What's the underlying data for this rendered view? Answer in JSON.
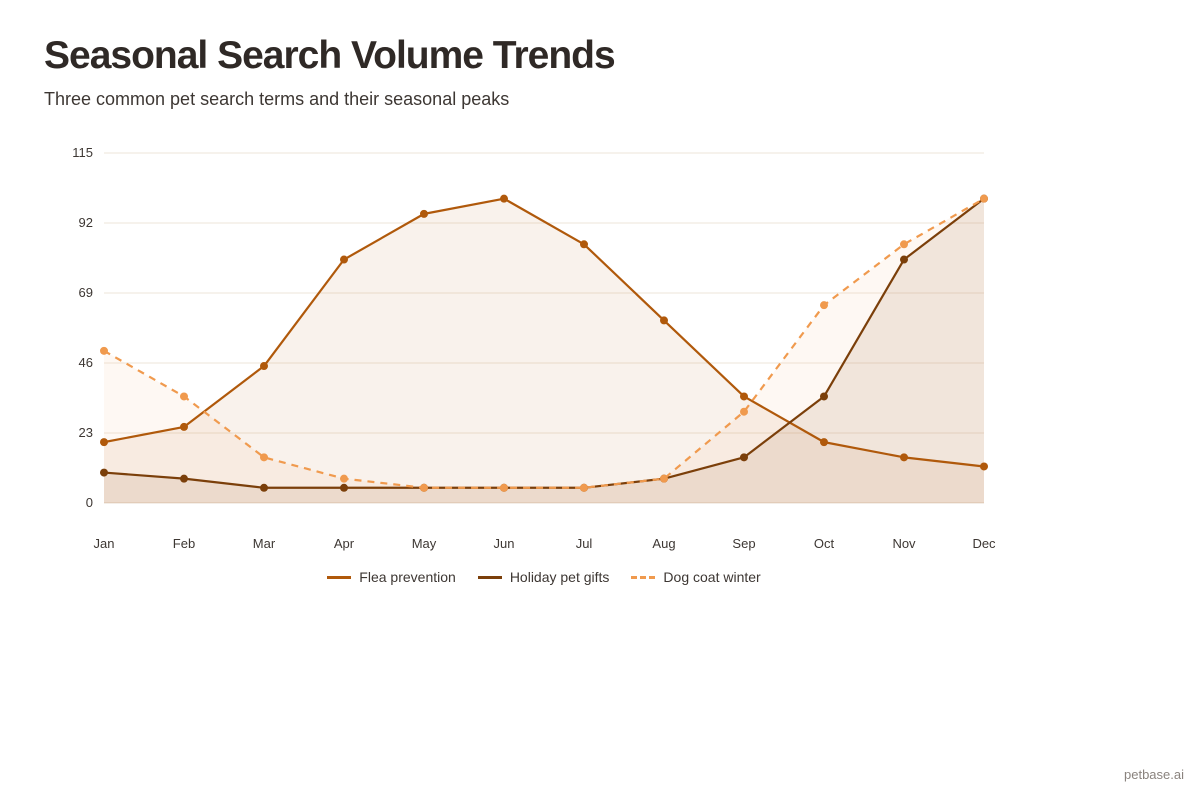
{
  "title": "Seasonal Search Volume Trends",
  "subtitle": "Three common pet search terms and their seasonal peaks",
  "footer": "petbase.ai",
  "chart_data": {
    "type": "line",
    "x": [
      "Jan",
      "Feb",
      "Mar",
      "Apr",
      "May",
      "Jun",
      "Jul",
      "Aug",
      "Sep",
      "Oct",
      "Nov",
      "Dec"
    ],
    "ylim": [
      0,
      115
    ],
    "yticks": [
      0,
      23,
      46,
      69,
      92,
      115
    ],
    "grid": true,
    "area_fill": true,
    "legend_position": "bottom",
    "series": [
      {
        "name": "Flea prevention",
        "color": "#b0590b",
        "dashed": false,
        "values": [
          20,
          25,
          45,
          80,
          95,
          100,
          85,
          60,
          35,
          20,
          15,
          12
        ]
      },
      {
        "name": "Holiday pet gifts",
        "color": "#7b3f0a",
        "dashed": false,
        "values": [
          10,
          8,
          5,
          5,
          5,
          5,
          5,
          8,
          15,
          35,
          80,
          100
        ]
      },
      {
        "name": "Dog coat winter",
        "color": "#f09a4e",
        "dashed": true,
        "values": [
          50,
          35,
          15,
          8,
          5,
          5,
          5,
          8,
          30,
          65,
          85,
          100
        ]
      }
    ]
  }
}
